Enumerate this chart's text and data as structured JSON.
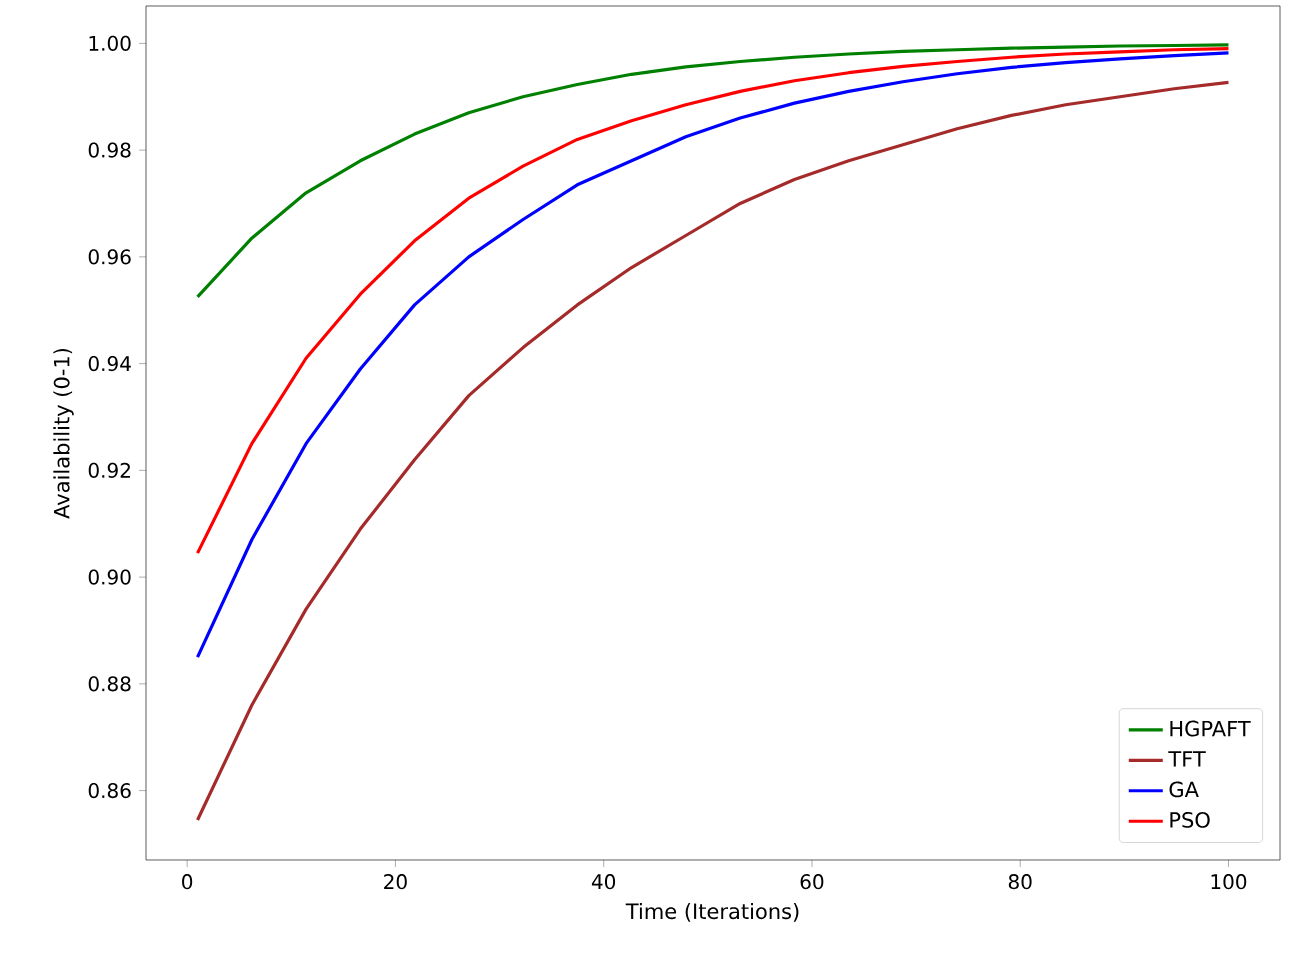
{
  "chart_data": {
    "type": "line",
    "xlabel": "Time (Iterations)",
    "ylabel": "Availability (0-1)",
    "x": [
      1,
      6.21,
      11.42,
      16.63,
      21.84,
      27.05,
      32.26,
      37.47,
      42.68,
      47.89,
      53.11,
      58.32,
      63.53,
      68.74,
      73.95,
      79.16,
      84.37,
      89.58,
      94.79,
      100
    ],
    "series": [
      {
        "name": "HGPAFT",
        "color": "#008000",
        "values": [
          0.9525,
          0.9635,
          0.972,
          0.978,
          0.983,
          0.987,
          0.99,
          0.9923,
          0.9942,
          0.9956,
          0.9966,
          0.9974,
          0.998,
          0.9985,
          0.9988,
          0.9991,
          0.9993,
          0.9995,
          0.9996,
          0.9997
        ]
      },
      {
        "name": "TFT",
        "color": "#a52a2a",
        "values": [
          0.8545,
          0.876,
          0.894,
          0.909,
          0.922,
          0.934,
          0.943,
          0.951,
          0.958,
          0.964,
          0.97,
          0.9745,
          0.978,
          0.981,
          0.984,
          0.9865,
          0.9885,
          0.99,
          0.9915,
          0.9927
        ]
      },
      {
        "name": "GA",
        "color": "#0000ff",
        "values": [
          0.885,
          0.907,
          0.925,
          0.939,
          0.951,
          0.96,
          0.967,
          0.9735,
          0.978,
          0.9825,
          0.986,
          0.9888,
          0.991,
          0.9928,
          0.9943,
          0.9955,
          0.9964,
          0.9971,
          0.9977,
          0.9982
        ]
      },
      {
        "name": "PSO",
        "color": "#ff0000",
        "values": [
          0.9045,
          0.925,
          0.941,
          0.953,
          0.963,
          0.971,
          0.977,
          0.982,
          0.9855,
          0.9885,
          0.991,
          0.993,
          0.9945,
          0.9957,
          0.9966,
          0.9974,
          0.998,
          0.9984,
          0.9988,
          0.999
        ]
      }
    ],
    "xlim": [
      -3.95,
      104.95
    ],
    "ylim": [
      0.847,
      1.007
    ],
    "xticks": [
      0,
      20,
      40,
      60,
      80,
      100
    ],
    "yticks": [
      0.86,
      0.88,
      {
        "value": 0.9,
        "label": "0.90"
      },
      0.92,
      0.94,
      0.96,
      0.98,
      {
        "value": 1.0,
        "label": "1.00"
      }
    ],
    "grid": false,
    "legend": "bottom right",
    "marker": "none",
    "line_style": "solid"
  }
}
